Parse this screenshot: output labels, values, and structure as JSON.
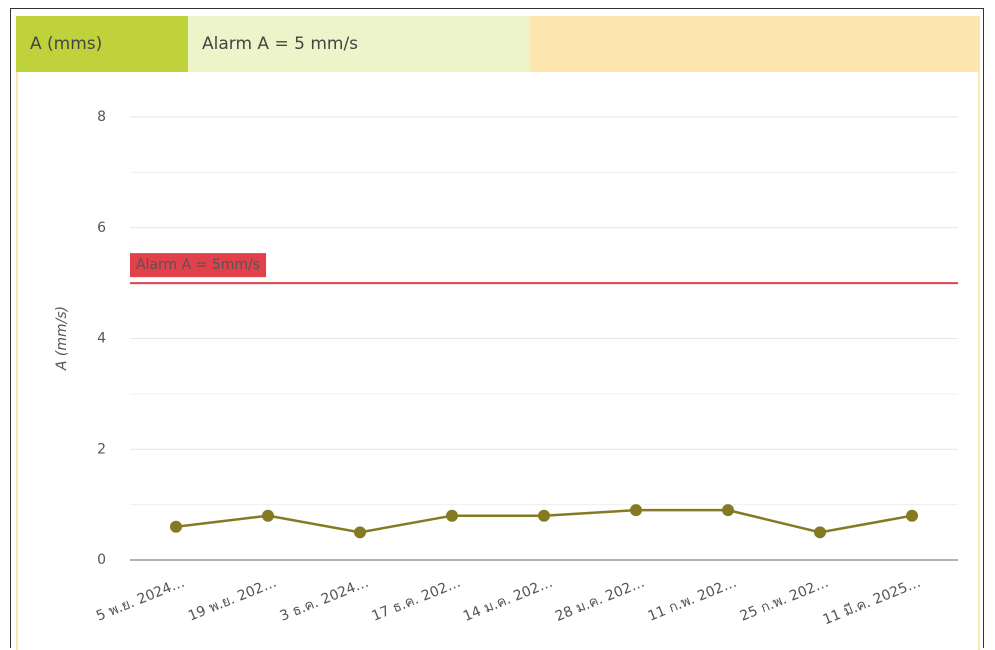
{
  "header": {
    "tabs": [
      "A (mms)",
      "Alarm A = 5 mm/s"
    ]
  },
  "chart_data": {
    "type": "line",
    "y_label": "A (mm/s)",
    "categories": [
      "5 พ.ย. 2024…",
      "19 พ.ย. 202…",
      "3 ธ.ค. 2024…",
      "17 ธ.ค. 202…",
      "14 ม.ค. 202…",
      "28 ม.ค. 202…",
      "11 ก.พ. 202…",
      "25 ก.พ. 202…",
      "11 มี.ค. 2025…"
    ],
    "series": [
      {
        "name": "A (mms)",
        "color": "#857a22",
        "values": [
          0.6,
          0.8,
          0.5,
          0.8,
          0.8,
          0.9,
          0.9,
          0.5,
          0.8
        ]
      }
    ],
    "ylim": [
      0,
      8
    ],
    "yticks": [
      0,
      2,
      4,
      6,
      8
    ],
    "grid": true,
    "threshold": {
      "label": "Alarm A = 5mm/s",
      "value": 5,
      "color": "#e0414b"
    }
  }
}
